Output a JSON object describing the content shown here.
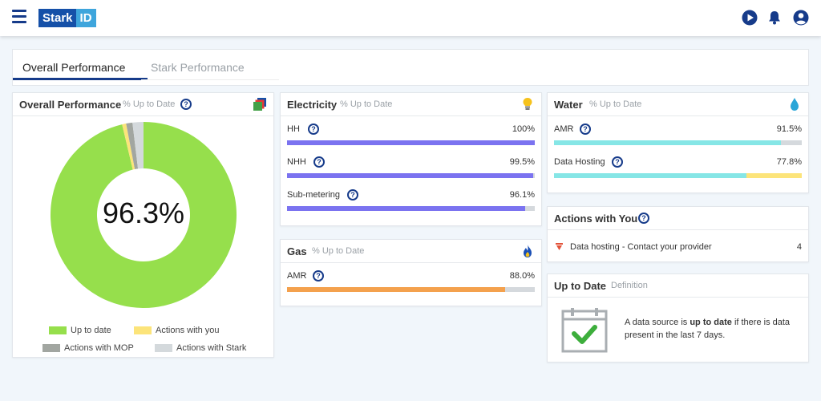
{
  "header": {
    "logo_part1": "Stark",
    "logo_part2": "ID",
    "icons": [
      "menu-icon",
      "play-icon",
      "bell-icon",
      "user-icon"
    ],
    "brand_color": "#163b8a"
  },
  "tabs": [
    {
      "label": "Overall Performance",
      "active": true
    },
    {
      "label": "Stark Performance",
      "active": false
    }
  ],
  "overall": {
    "title": "Overall Performance",
    "subtitle": "% Up to Date",
    "value_label": "96.3%",
    "donut": [
      {
        "label": "Up to date",
        "value": 96.3,
        "color": "#96df4c"
      },
      {
        "label": "Actions with you",
        "value": 0.7,
        "color": "#fce47a"
      },
      {
        "label": "Actions with MOP",
        "value": 1.1,
        "color": "#a2a6a1"
      },
      {
        "label": "Actions with Stark",
        "value": 1.9,
        "color": "#d4d9dc"
      }
    ]
  },
  "electricity": {
    "title": "Electricity",
    "subtitle": "% Up to Date",
    "icon": "bulb-icon",
    "rows": [
      {
        "label": "HH",
        "value": "100%",
        "fill": 100,
        "color": "#7b73f0"
      },
      {
        "label": "NHH",
        "value": "99.5%",
        "fill": 99.5,
        "color": "#7b73f0"
      },
      {
        "label": "Sub-metering",
        "value": "96.1%",
        "fill": 96.1,
        "color": "#7b73f0"
      }
    ]
  },
  "gas": {
    "title": "Gas",
    "subtitle": "% Up to Date",
    "icon": "flame-icon",
    "rows": [
      {
        "label": "AMR",
        "value": "88.0%",
        "fill": 88.0,
        "color": "#f4a14d"
      }
    ]
  },
  "water": {
    "title": "Water",
    "subtitle": "% Up to Date",
    "icon": "water-drop-icon",
    "rows": [
      {
        "label": "AMR",
        "value": "91.5%",
        "fill": 91.5,
        "color": "#86e6e6",
        "extra": null
      },
      {
        "label": "Data Hosting",
        "value": "77.8%",
        "fill": 77.8,
        "color": "#86e6e6",
        "extra": "#fce47a"
      }
    ]
  },
  "actions": {
    "title": "Actions with You",
    "items": [
      {
        "label": "Data hosting - Contact your provider",
        "count": "4"
      }
    ]
  },
  "uptodate": {
    "title": "Up to Date",
    "subtitle": "Definition",
    "desc_pre": "A data source is ",
    "desc_bold": "up to date",
    "desc_post": " if there is data present in the last 7 days."
  }
}
